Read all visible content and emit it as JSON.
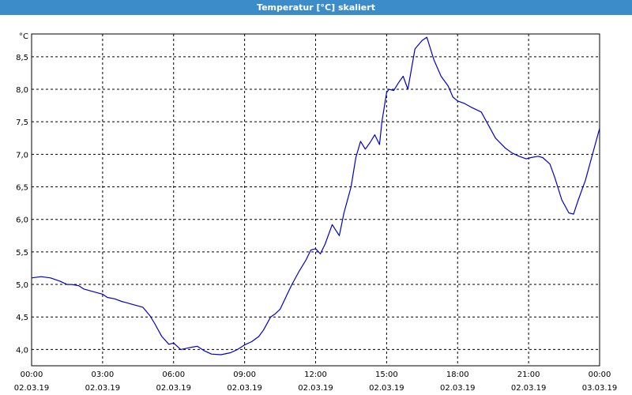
{
  "window": {
    "title": "Temperatur [°C] skaliert"
  },
  "chart_data": {
    "type": "line",
    "title": "Temperatur [°C] skaliert",
    "y_unit": "°C",
    "ylim": [
      3.75,
      8.85
    ],
    "xlim": [
      0,
      24
    ],
    "grid": true,
    "y_ticks": [
      {
        "value": 4.0,
        "label": "4,0"
      },
      {
        "value": 4.5,
        "label": "4,5"
      },
      {
        "value": 5.0,
        "label": "5,0"
      },
      {
        "value": 5.5,
        "label": "5,5"
      },
      {
        "value": 6.0,
        "label": "6,0"
      },
      {
        "value": 6.5,
        "label": "6,5"
      },
      {
        "value": 7.0,
        "label": "7,0"
      },
      {
        "value": 7.5,
        "label": "7,5"
      },
      {
        "value": 8.0,
        "label": "8,0"
      },
      {
        "value": 8.5,
        "label": "8,5"
      }
    ],
    "x_ticks": [
      {
        "value": 0,
        "time": "00:00",
        "date": "02.03.19"
      },
      {
        "value": 3,
        "time": "03:00",
        "date": "02.03.19"
      },
      {
        "value": 6,
        "time": "06:00",
        "date": "02.03.19"
      },
      {
        "value": 9,
        "time": "09:00",
        "date": "02.03.19"
      },
      {
        "value": 12,
        "time": "12:00",
        "date": "02.03.19"
      },
      {
        "value": 15,
        "time": "15:00",
        "date": "02.03.19"
      },
      {
        "value": 18,
        "time": "18:00",
        "date": "02.03.19"
      },
      {
        "value": 21,
        "time": "21:00",
        "date": "02.03.19"
      },
      {
        "value": 24,
        "time": "00:00",
        "date": "03.03.19"
      }
    ],
    "series": [
      {
        "color": "#0000cc",
        "x": [
          0,
          0.4,
          0.8,
          1.2,
          1.5,
          1.7,
          2.0,
          2.2,
          2.5,
          2.8,
          3.0,
          3.2,
          3.5,
          3.8,
          4.0,
          4.2,
          4.4,
          4.7,
          5.0,
          5.2,
          5.5,
          5.8,
          6.0,
          6.3,
          6.7,
          7.0,
          7.3,
          7.6,
          8.0,
          8.4,
          8.7,
          9.0,
          9.3,
          9.6,
          9.8,
          10.1,
          10.3,
          10.5,
          10.8,
          11.0,
          11.3,
          11.6,
          11.8,
          12.0,
          12.2,
          12.4,
          12.7,
          13.0,
          13.2,
          13.5,
          13.7,
          13.9,
          14.1,
          14.3,
          14.5,
          14.7,
          14.8,
          15.0,
          15.1,
          15.3,
          15.5,
          15.7,
          15.9,
          16.2,
          16.5,
          16.7,
          17.0,
          17.3,
          17.6,
          17.8,
          18.0,
          18.3,
          18.6,
          19.0,
          19.3,
          19.6,
          20.0,
          20.3,
          20.6,
          20.9,
          21.1,
          21.4,
          21.6,
          21.9,
          22.1,
          22.4,
          22.7,
          22.9,
          23.1,
          23.4,
          23.7,
          24.0
        ],
        "values": [
          5.1,
          5.12,
          5.1,
          5.05,
          5.0,
          5.0,
          4.98,
          4.93,
          4.9,
          4.87,
          4.85,
          4.8,
          4.78,
          4.74,
          4.72,
          4.7,
          4.68,
          4.65,
          4.52,
          4.4,
          4.2,
          4.08,
          4.1,
          4.0,
          4.03,
          4.05,
          3.98,
          3.93,
          3.92,
          3.95,
          4.0,
          4.07,
          4.12,
          4.2,
          4.3,
          4.5,
          4.55,
          4.62,
          4.85,
          5.0,
          5.2,
          5.38,
          5.53,
          5.55,
          5.47,
          5.62,
          5.92,
          5.75,
          6.1,
          6.5,
          6.95,
          7.2,
          7.08,
          7.18,
          7.3,
          7.15,
          7.5,
          7.95,
          8.0,
          7.98,
          8.1,
          8.2,
          8.0,
          8.62,
          8.75,
          8.8,
          8.45,
          8.2,
          8.05,
          7.88,
          7.82,
          7.78,
          7.72,
          7.65,
          7.45,
          7.25,
          7.1,
          7.02,
          6.97,
          6.93,
          6.95,
          6.97,
          6.95,
          6.85,
          6.65,
          6.3,
          6.1,
          6.08,
          6.3,
          6.6,
          7.0,
          7.4
        ]
      }
    ]
  }
}
